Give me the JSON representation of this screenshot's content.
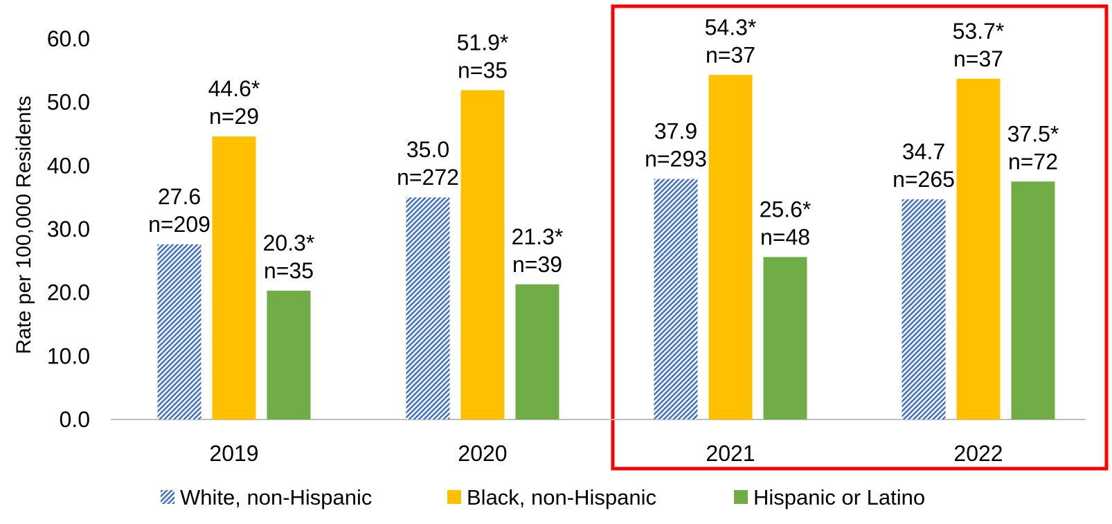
{
  "chart_data": {
    "type": "bar",
    "categories": [
      "2019",
      "2020",
      "2021",
      "2022"
    ],
    "ylabel": "Rate per 100,000 Residents",
    "ylim": [
      0,
      60
    ],
    "yticks": [
      "0.0",
      "10.0",
      "20.0",
      "30.0",
      "40.0",
      "50.0",
      "60.0"
    ],
    "grid": false,
    "legend_position": "bottom",
    "highlight": {
      "categories": [
        "2021",
        "2022"
      ],
      "color": "#ff0000",
      "style": "box"
    },
    "series": [
      {
        "name": "White, non-Hispanic",
        "color": "#4472c4",
        "pattern": "diagonal-hatch",
        "values": [
          27.6,
          35.0,
          37.9,
          34.7
        ],
        "value_labels": [
          "27.6",
          "35.0",
          "37.9",
          "34.7"
        ],
        "n_labels": [
          "n=209",
          "n=272",
          "n=293",
          "n=265"
        ]
      },
      {
        "name": "Black, non-Hispanic",
        "color": "#ffc000",
        "pattern": "solid",
        "values": [
          44.6,
          51.9,
          54.3,
          53.7
        ],
        "value_labels": [
          "44.6*",
          "51.9*",
          "54.3*",
          "53.7*"
        ],
        "n_labels": [
          "n=29",
          "n=35",
          "n=37",
          "n=37"
        ]
      },
      {
        "name": "Hispanic or Latino",
        "color": "#70ad47",
        "pattern": "solid",
        "values": [
          20.3,
          21.3,
          25.6,
          37.5
        ],
        "value_labels": [
          "20.3*",
          "21.3*",
          "25.6*",
          "37.5*"
        ],
        "n_labels": [
          "n=35",
          "n=39",
          "n=48",
          "n=72"
        ]
      }
    ]
  }
}
